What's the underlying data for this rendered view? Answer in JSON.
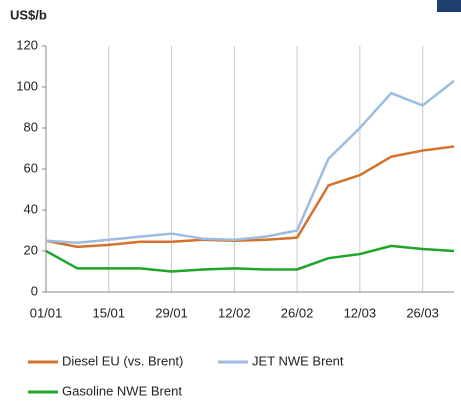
{
  "chart_data": {
    "type": "line",
    "y_label": "US$/b",
    "categories": [
      "01/01",
      null,
      "15/01",
      null,
      "29/01",
      null,
      "12/02",
      null,
      "26/02",
      null,
      "12/03",
      null,
      "26/03",
      null
    ],
    "series": [
      {
        "name": "Diesel EU (vs. Brent)",
        "color": "#d4712d",
        "values": [
          25,
          22,
          23,
          24.5,
          24.5,
          25.5,
          25,
          25.5,
          26.5,
          52,
          57,
          66,
          69,
          71
        ]
      },
      {
        "name": "JET NWE Brent",
        "color": "#9dbde0",
        "values": [
          25,
          24,
          25.5,
          27,
          28.5,
          26,
          25.5,
          27,
          30,
          65,
          80,
          97,
          91,
          103
        ]
      },
      {
        "name": "Gasoline NWE Brent",
        "color": "#1ea52a",
        "values": [
          20,
          11.5,
          11.5,
          11.5,
          10,
          11,
          11.5,
          11,
          11,
          16.5,
          18.5,
          22.5,
          21,
          20
        ]
      }
    ],
    "ylim": [
      0,
      120
    ],
    "yticks": [
      0,
      20,
      40,
      60,
      80,
      100,
      120
    ],
    "grid": true
  }
}
